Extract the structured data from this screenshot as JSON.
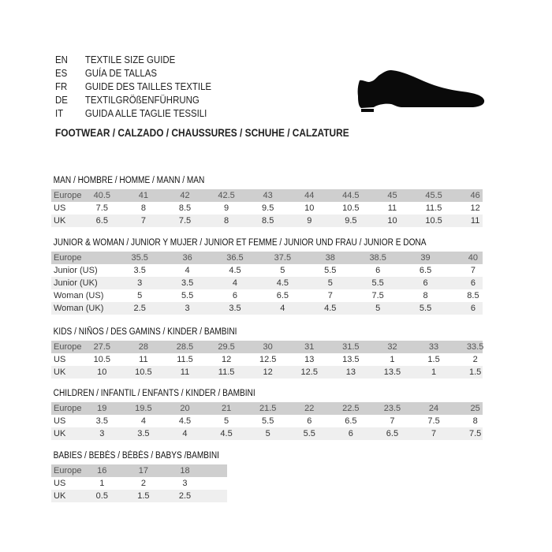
{
  "header": {
    "languages": [
      {
        "code": "EN",
        "title": "TEXTILE SIZE GUIDE"
      },
      {
        "code": "ES",
        "title": "GUÍA DE TALLAS"
      },
      {
        "code": "FR",
        "title": "GUIDE DES TAILLES TEXTILE"
      },
      {
        "code": "DE",
        "title": "TEXTILGRÖßENFÜHRUNG"
      },
      {
        "code": "IT",
        "title": "GUIDA ALLE TAGLIE TESSILI"
      }
    ],
    "footwear": "FOOTWEAR / CALZADO / CHAUSSURES / SCHUHE / CALZATURE",
    "icon": "dress-shoe-icon"
  },
  "colors": {
    "header_row": "#cfcfcf",
    "alt_row": "#efefef",
    "text": "#222222"
  },
  "tables": [
    {
      "title": "MAN / HOMBRE / HOMME / MANN / MAN",
      "style": "man",
      "rows": [
        [
          "Europe",
          "40.5",
          "41",
          "42",
          "42.5",
          "43",
          "44",
          "44.5",
          "45",
          "45.5",
          "46"
        ],
        [
          "US",
          "7.5",
          "8",
          "8.5",
          "9",
          "9.5",
          "10",
          "10.5",
          "11",
          "11.5",
          "12"
        ],
        [
          "UK",
          "6.5",
          "7",
          "7.5",
          "8",
          "8.5",
          "9",
          "9.5",
          "10",
          "10.5",
          "11"
        ]
      ]
    },
    {
      "title": "JUNIOR & WOMAN / JUNIOR Y MUJER / JUNIOR ET FEMME / JUNIOR UND FRAU / JUNIOR E DONA",
      "style": "jr",
      "rows": [
        [
          "Europe",
          "35.5",
          "36",
          "36.5",
          "37.5",
          "38",
          "38.5",
          "39",
          "40"
        ],
        [
          "Junior (US)",
          "3.5",
          "4",
          "4.5",
          "5",
          "5.5",
          "6",
          "6.5",
          "7"
        ],
        [
          "Junior (UK)",
          "3",
          "3.5",
          "4",
          "4.5",
          "5",
          "5.5",
          "6",
          "6"
        ],
        [
          "Woman (US)",
          "5",
          "5.5",
          "6",
          "6.5",
          "7",
          "7.5",
          "8",
          "8.5"
        ],
        [
          "Woman (UK)",
          "2.5",
          "3",
          "3.5",
          "4",
          "4.5",
          "5",
          "5.5",
          "6"
        ]
      ]
    },
    {
      "title": "KIDS / NIÑOS / DES GAMINS / KINDER / BAMBINI",
      "style": "man",
      "rows": [
        [
          "Europe",
          "27.5",
          "28",
          "28.5",
          "29.5",
          "30",
          "31",
          "31.5",
          "32",
          "33",
          "33.5"
        ],
        [
          "US",
          "10.5",
          "11",
          "11.5",
          "12",
          "12.5",
          "13",
          "13.5",
          "1",
          "1.5",
          "2"
        ],
        [
          "UK",
          "10",
          "10.5",
          "11",
          "11.5",
          "12",
          "12.5",
          "13",
          "13.5",
          "1",
          "1.5"
        ]
      ]
    },
    {
      "title": "CHILDREN / INFANTIL / ENFANTS / KINDER / BAMBINI",
      "style": "man",
      "rows": [
        [
          "Europe",
          "19",
          "19.5",
          "20",
          "21",
          "21.5",
          "22",
          "22.5",
          "23.5",
          "24",
          "25"
        ],
        [
          "US",
          "3.5",
          "4",
          "4.5",
          "5",
          "5.5",
          "6",
          "6.5",
          "7",
          "7.5",
          "8"
        ],
        [
          "UK",
          "3",
          "3.5",
          "4",
          "4.5",
          "5",
          "5.5",
          "6",
          "6.5",
          "7",
          "7.5"
        ]
      ]
    },
    {
      "title": "BABIES  / BEBÉS / BÉBÉS / BABYS /BAMBINI",
      "style": "babies",
      "rows": [
        [
          "Europe",
          "16",
          "17",
          "18"
        ],
        [
          "US",
          "1",
          "2",
          "3"
        ],
        [
          "UK",
          "0.5",
          "1.5",
          "2.5"
        ]
      ]
    }
  ]
}
